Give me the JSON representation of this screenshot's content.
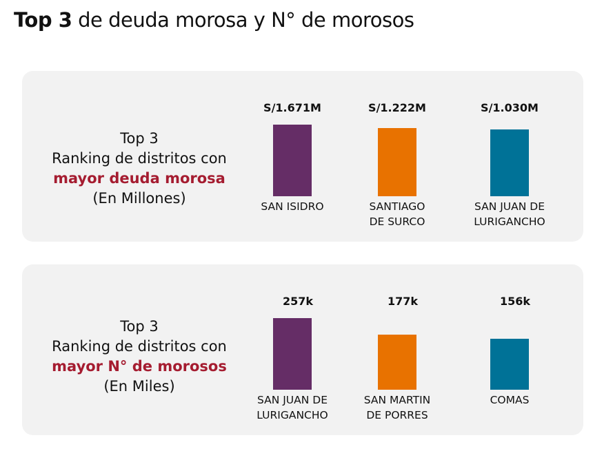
{
  "title": {
    "bold": "Top 3",
    "rest": " de deuda morosa y N° de morosos"
  },
  "highlight_color": "#a51c30",
  "chart_data": [
    {
      "type": "bar",
      "caption": {
        "line1": "Top 3",
        "line2": "Ranking de distritos con",
        "highlight": "mayor deuda morosa",
        "unit": "(En Millones)"
      },
      "categories": [
        "SAN ISIDRO",
        "SANTIAGO DE SURCO",
        "SAN JUAN DE LURIGANCHO"
      ],
      "category_lines": [
        [
          "SAN ISIDRO"
        ],
        [
          "SANTIAGO",
          "DE SURCO"
        ],
        [
          "SAN JUAN DE",
          "LURIGANCHO"
        ]
      ],
      "values": [
        1.671,
        1.222,
        1.03
      ],
      "data_labels": [
        "S/1.671M",
        "S/1.222M",
        "S/1.030M"
      ],
      "colors": [
        "#652d66",
        "#e87200",
        "#007297"
      ]
    },
    {
      "type": "bar",
      "caption": {
        "line1": "Top 3",
        "line2": "Ranking de distritos con",
        "highlight": "mayor N° de morosos",
        "unit": "(En Miles)"
      },
      "categories": [
        "SAN JUAN DE LURIGANCHO",
        "SAN MARTIN DE PORRES",
        "COMAS"
      ],
      "category_lines": [
        [
          "SAN JUAN DE",
          "LURIGANCHO"
        ],
        [
          "SAN MARTIN",
          "DE PORRES"
        ],
        [
          "COMAS"
        ]
      ],
      "values": [
        257,
        177,
        156
      ],
      "data_labels": [
        "257k",
        "177k",
        "156k"
      ],
      "colors": [
        "#652d66",
        "#e87200",
        "#007297"
      ]
    }
  ]
}
